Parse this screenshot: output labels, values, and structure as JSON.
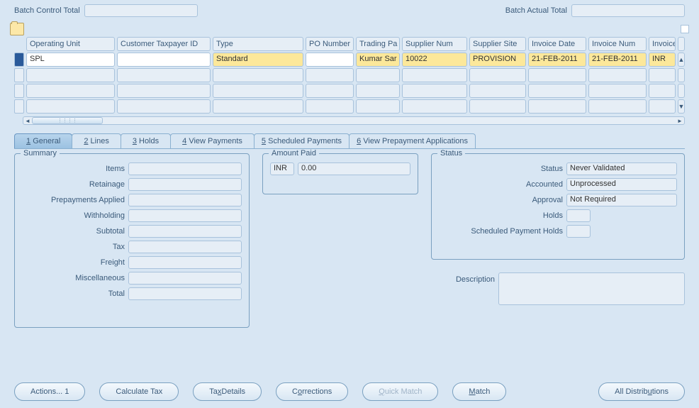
{
  "colors": {
    "background": "#d8e6f3",
    "field_bg": "#e6eef6",
    "border": "#a8c2dc",
    "highlight": "#fce89a",
    "text": "#3a5a7a",
    "active_marker": "#2a5a9a"
  },
  "header": {
    "batch_control_label": "Batch Control Total",
    "batch_control_value": "",
    "batch_actual_label": "Batch Actual Total",
    "batch_actual_value": ""
  },
  "grid": {
    "columns": [
      "Operating Unit",
      "Customer Taxpayer ID",
      "Type",
      "PO Number",
      "Trading Pa",
      "Supplier Num",
      "Supplier Site",
      "Invoice Date",
      "Invoice Num",
      "Invoice"
    ],
    "row1": {
      "operating_unit": "SPL",
      "customer_taxpayer_id": "",
      "type": "Standard",
      "po_number": "",
      "trading_partner": "Kumar Sar",
      "supplier_num": "10022",
      "supplier_site": "PROVISION",
      "invoice_date": "21-FEB-2011",
      "invoice_num": "21-FEB-2011",
      "invoice_currency": "INR"
    }
  },
  "tabs": [
    {
      "num": "1",
      "label": "General"
    },
    {
      "num": "2",
      "label": "Lines"
    },
    {
      "num": "3",
      "label": "Holds"
    },
    {
      "num": "4",
      "label": "View Payments"
    },
    {
      "num": "5",
      "label": "Scheduled Payments"
    },
    {
      "num": "6",
      "label": "View Prepayment Applications"
    }
  ],
  "summary": {
    "legend": "Summary",
    "fields": [
      {
        "label": "Items",
        "value": ""
      },
      {
        "label": "Retainage",
        "value": ""
      },
      {
        "label": "Prepayments Applied",
        "value": ""
      },
      {
        "label": "Withholding",
        "value": ""
      },
      {
        "label": "Subtotal",
        "value": ""
      },
      {
        "label": "Tax",
        "value": ""
      },
      {
        "label": "Freight",
        "value": ""
      },
      {
        "label": "Miscellaneous",
        "value": ""
      },
      {
        "label": "Total",
        "value": ""
      }
    ]
  },
  "amount_paid": {
    "legend": "Amount Paid",
    "currency": "INR",
    "value": "0.00"
  },
  "status": {
    "legend": "Status",
    "fields": [
      {
        "label": "Status",
        "value": "Never Validated"
      },
      {
        "label": "Accounted",
        "value": "Unprocessed"
      },
      {
        "label": "Approval",
        "value": "Not Required"
      }
    ],
    "holds_label": "Holds",
    "holds_value": "",
    "sched_holds_label": "Scheduled Payment Holds",
    "sched_holds_value": ""
  },
  "description": {
    "label": "Description",
    "value": ""
  },
  "buttons": {
    "actions": "Actions... 1",
    "calc_tax": "Calculate Tax",
    "tax_details": "Tax Details",
    "corrections": "Corrections",
    "quick_match": "Quick Match",
    "match": "Match",
    "all_dist": "All Distributions"
  }
}
